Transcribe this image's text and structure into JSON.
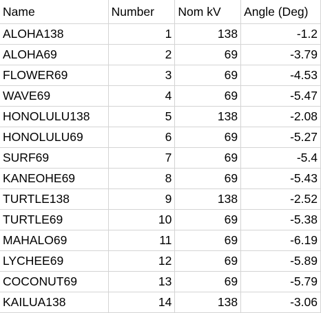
{
  "columns": [
    "Name",
    "Number",
    "Nom kV",
    "Angle (Deg)"
  ],
  "rows": [
    {
      "name": "ALOHA138",
      "number": "1",
      "nom_kv": "138",
      "angle": "-1.2"
    },
    {
      "name": "ALOHA69",
      "number": "2",
      "nom_kv": "69",
      "angle": "-3.79"
    },
    {
      "name": "FLOWER69",
      "number": "3",
      "nom_kv": "69",
      "angle": "-4.53"
    },
    {
      "name": "WAVE69",
      "number": "4",
      "nom_kv": "69",
      "angle": "-5.47"
    },
    {
      "name": "HONOLULU138",
      "number": "5",
      "nom_kv": "138",
      "angle": "-2.08"
    },
    {
      "name": "HONOLULU69",
      "number": "6",
      "nom_kv": "69",
      "angle": "-5.27"
    },
    {
      "name": "SURF69",
      "number": "7",
      "nom_kv": "69",
      "angle": "-5.4"
    },
    {
      "name": "KANEOHE69",
      "number": "8",
      "nom_kv": "69",
      "angle": "-5.43"
    },
    {
      "name": "TURTLE138",
      "number": "9",
      "nom_kv": "138",
      "angle": "-2.52"
    },
    {
      "name": "TURTLE69",
      "number": "10",
      "nom_kv": "69",
      "angle": "-5.38"
    },
    {
      "name": "MAHALO69",
      "number": "11",
      "nom_kv": "69",
      "angle": "-6.19"
    },
    {
      "name": "LYCHEE69",
      "number": "12",
      "nom_kv": "69",
      "angle": "-5.89"
    },
    {
      "name": "COCONUT69",
      "number": "13",
      "nom_kv": "69",
      "angle": "-5.79"
    },
    {
      "name": "KAILUA138",
      "number": "14",
      "nom_kv": "138",
      "angle": "-3.06"
    }
  ],
  "colors": {
    "gridline": "#d4d4d4",
    "text": "#000000",
    "background": "#ffffff"
  }
}
